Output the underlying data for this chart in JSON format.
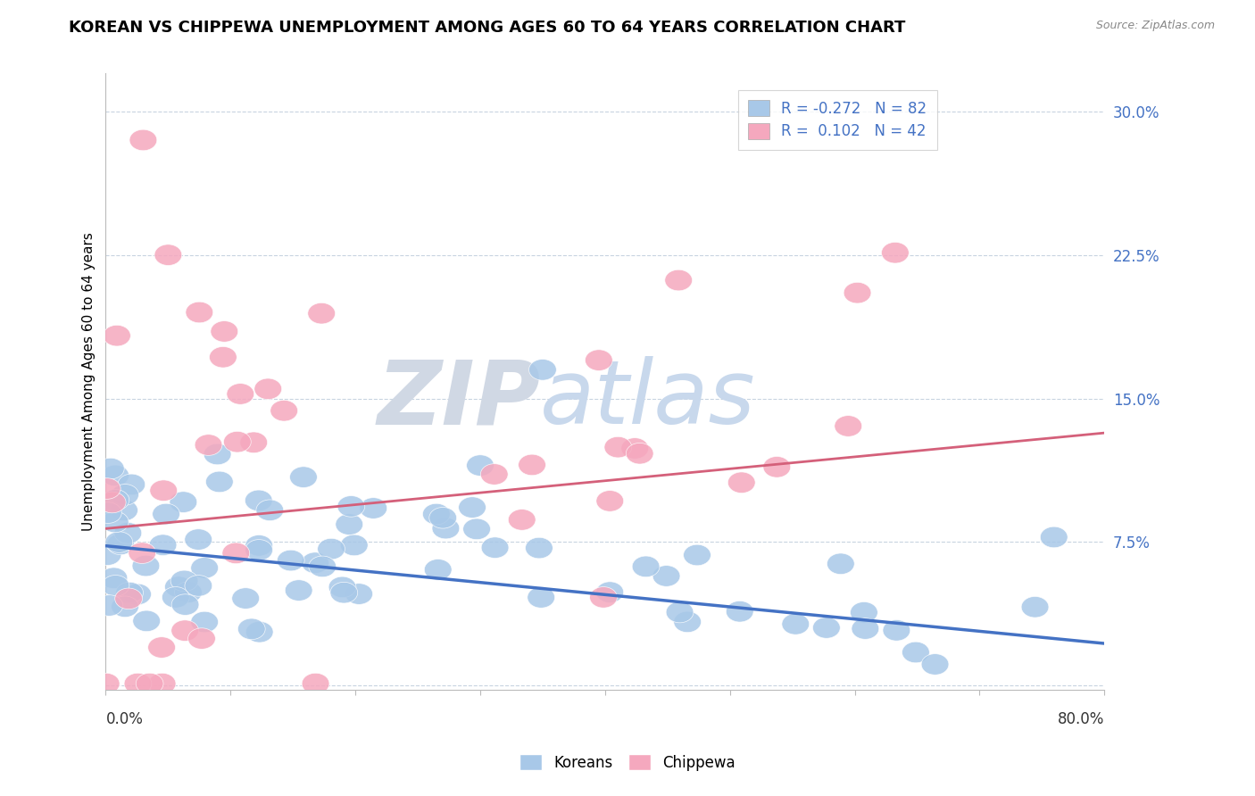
{
  "title": "KOREAN VS CHIPPEWA UNEMPLOYMENT AMONG AGES 60 TO 64 YEARS CORRELATION CHART",
  "source": "Source: ZipAtlas.com",
  "ylabel": "Unemployment Among Ages 60 to 64 years",
  "xlim": [
    0.0,
    0.8
  ],
  "ylim": [
    -0.002,
    0.32
  ],
  "yticks": [
    0.0,
    0.075,
    0.15,
    0.225,
    0.3
  ],
  "ytick_labels": [
    "",
    "7.5%",
    "15.0%",
    "22.5%",
    "30.0%"
  ],
  "korean_R": -0.272,
  "korean_N": 82,
  "chippewa_R": 0.102,
  "chippewa_N": 42,
  "korean_color": "#a8c8e8",
  "chippewa_color": "#f5a8be",
  "korean_line_color": "#4472c4",
  "chippewa_line_color": "#d4607a",
  "legend_label_korean": "Koreans",
  "legend_label_chippewa": "Chippewa",
  "title_fontsize": 13,
  "axis_label_fontsize": 11,
  "tick_fontsize": 12,
  "background_color": "#ffffff",
  "watermark_zip_color": "#d0d8e4",
  "watermark_atlas_color": "#c8d8ec",
  "grid_color": "#c8d4e0",
  "korean_trend_start": 0.073,
  "korean_trend_end": 0.022,
  "chippewa_trend_start": 0.082,
  "chippewa_trend_end": 0.132
}
